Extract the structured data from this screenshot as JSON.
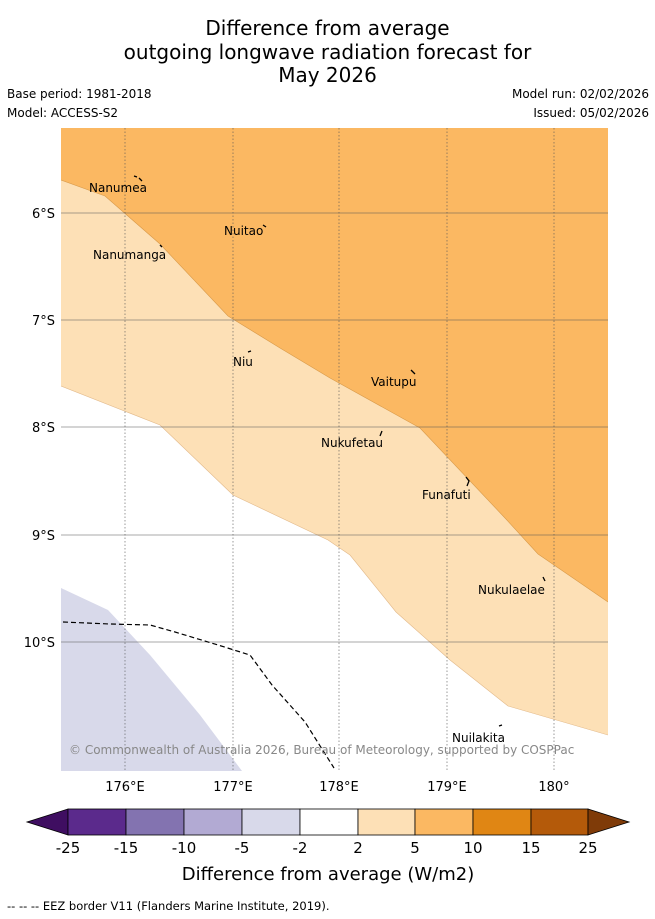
{
  "title": {
    "line1": "Difference from average",
    "line2": "outgoing longwave radiation forecast for",
    "line3": "May 2026"
  },
  "meta": {
    "base_period": "Base period: 1981-2018",
    "model": "Model: ACCESS-S2",
    "model_run": "Model run: 02/02/2026",
    "issued": "Issued: 05/02/2026"
  },
  "map": {
    "lat_labels": [
      "6°S",
      "7°S",
      "8°S",
      "9°S",
      "10°S"
    ],
    "lon_labels": [
      "176°E",
      "177°E",
      "178°E",
      "179°E",
      "180°"
    ],
    "islands": [
      "Nanumea",
      "Nuitao",
      "Nanumanga",
      "Niu",
      "Vaitupu",
      "Nukufetau",
      "Funafuti",
      "Nukulaelae",
      "Nuilakita"
    ],
    "copyright": "© Commonwealth of Australia 2026, Bureau of Meteorology, supported by COSPPac",
    "colors": {
      "band_5_10": "#fbb862",
      "band_2_5": "#fde0b6",
      "band_neg5_neg2": "#d8d9ea",
      "water": "#ffffff"
    }
  },
  "legend": {
    "ticks": [
      "-25",
      "-15",
      "-10",
      "-5",
      "-2",
      "2",
      "5",
      "10",
      "15",
      "25"
    ],
    "colors": [
      "#3f0e61",
      "#5b2a8c",
      "#8373b0",
      "#b2aad3",
      "#d8d9ea",
      "#ffffff",
      "#fde0b6",
      "#fbb862",
      "#e08614",
      "#b45a0a",
      "#7f3b08"
    ],
    "label": "Difference from average (W/m2)"
  },
  "footnote": "--  --  -- EEZ border V11 (Flanders Marine Institute, 2019)."
}
